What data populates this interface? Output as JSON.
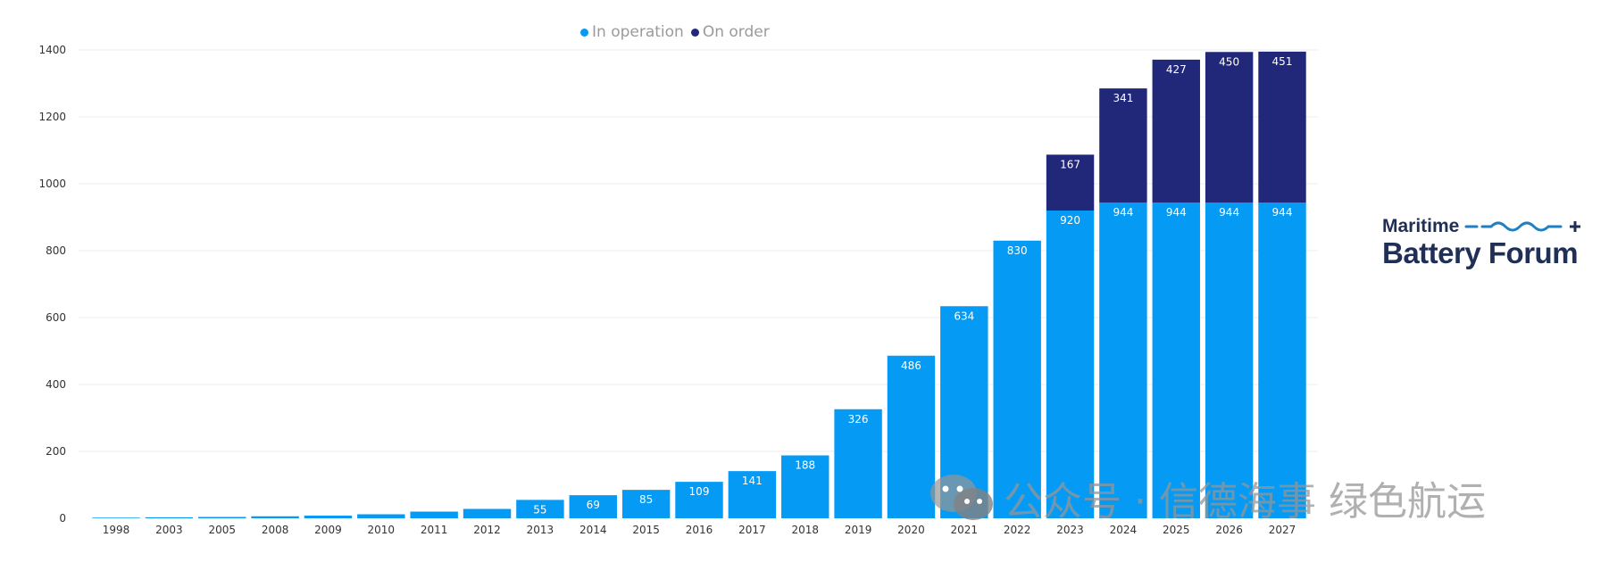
{
  "chart_data": {
    "type": "bar",
    "stacked": true,
    "categories": [
      "1998",
      "2003",
      "2005",
      "2008",
      "2009",
      "2010",
      "2011",
      "2012",
      "2013",
      "2014",
      "2015",
      "2016",
      "2017",
      "2018",
      "2019",
      "2020",
      "2021",
      "2022",
      "2023",
      "2024",
      "2025",
      "2026",
      "2027"
    ],
    "series": [
      {
        "name": "In operation",
        "color": "#059bf5",
        "values": [
          2,
          3,
          4,
          6,
          8,
          12,
          20,
          28,
          55,
          69,
          85,
          109,
          141,
          188,
          326,
          486,
          634,
          830,
          920,
          944,
          944,
          944,
          944
        ],
        "labels": [
          "",
          "",
          "",
          "",
          "",
          "",
          "",
          "",
          "55",
          "69",
          "85",
          "109",
          "141",
          "188",
          "326",
          "486",
          "634",
          "830",
          "920",
          "944",
          "944",
          "944",
          "944"
        ]
      },
      {
        "name": "On order",
        "color": "#21287a",
        "values": [
          0,
          0,
          0,
          0,
          0,
          0,
          0,
          0,
          0,
          0,
          0,
          0,
          0,
          0,
          0,
          0,
          0,
          0,
          167,
          341,
          427,
          450,
          451
        ],
        "labels": [
          "",
          "",
          "",
          "",
          "",
          "",
          "",
          "",
          "",
          "",
          "",
          "",
          "",
          "",
          "",
          "",
          "",
          "",
          "167",
          "341",
          "427",
          "450",
          "451"
        ]
      }
    ],
    "yticks": [
      0,
      200,
      400,
      600,
      800,
      1000,
      1200,
      1400
    ],
    "ylim": [
      0,
      1400
    ],
    "grid": true,
    "legend_position": "top-center"
  },
  "logo": {
    "line1": "Maritime",
    "line2": "Battery Forum"
  },
  "watermark": {
    "text": "公众号 · 信德海事 绿色航运",
    "icon": "wechat-icon"
  }
}
